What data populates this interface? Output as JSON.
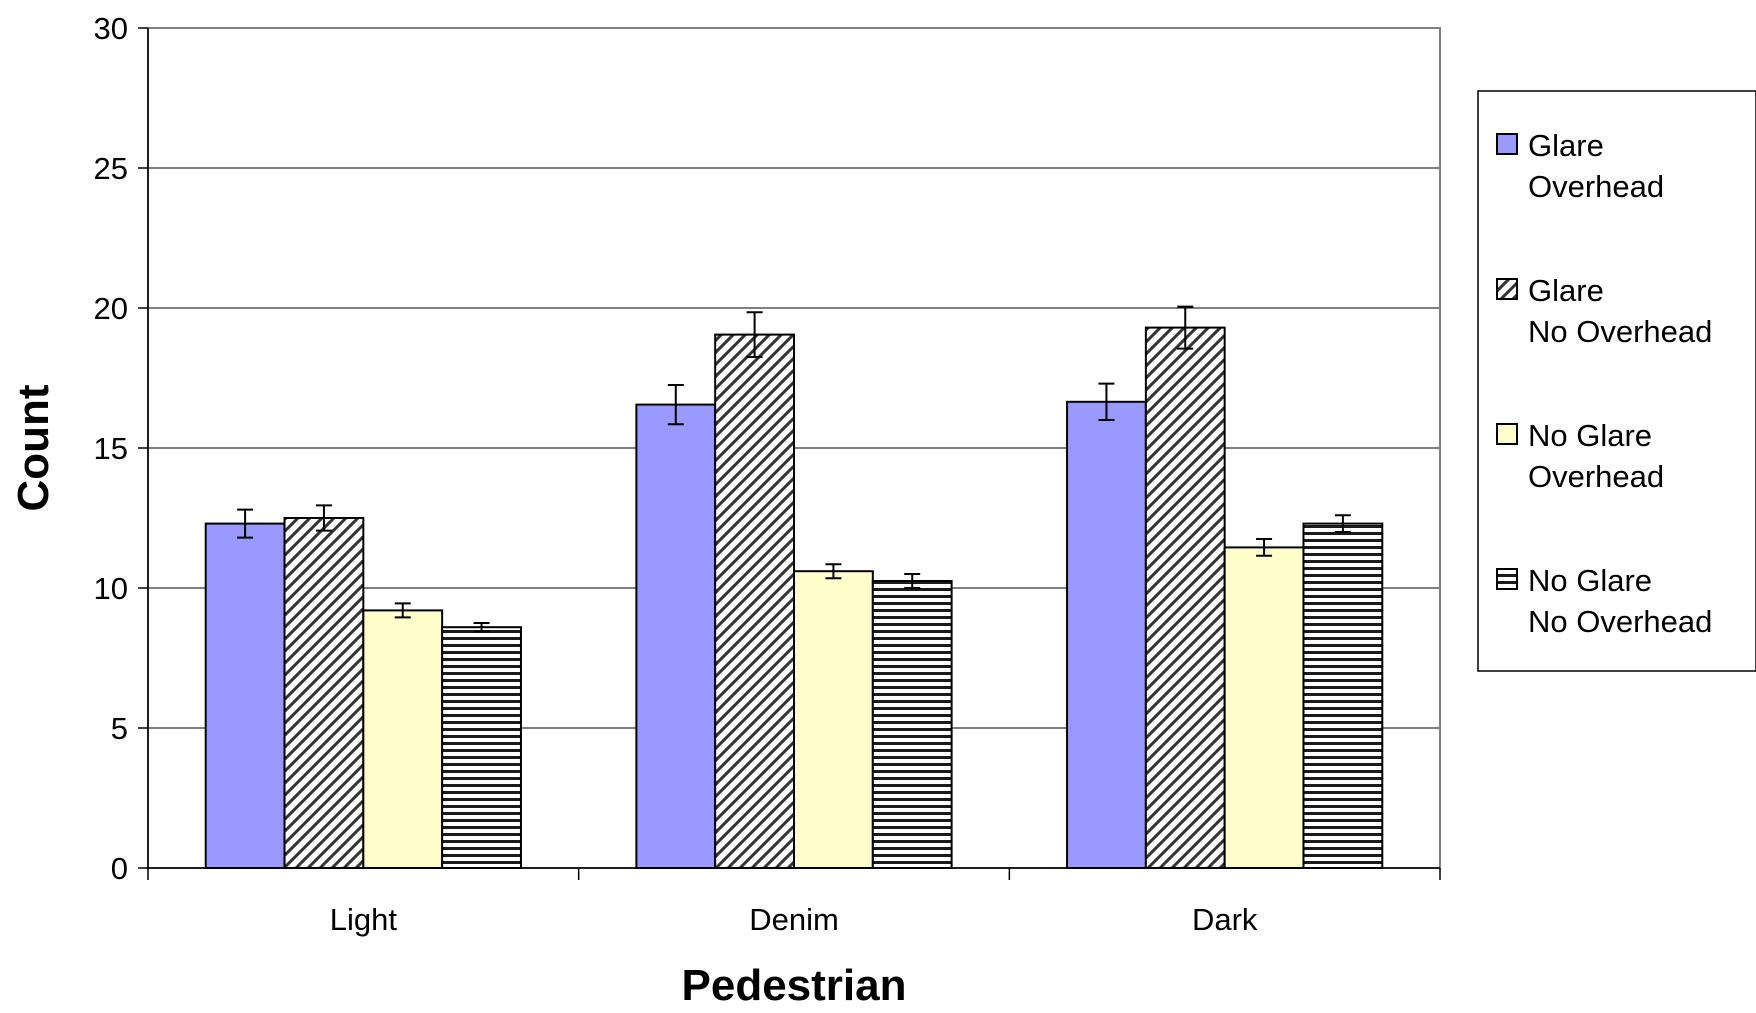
{
  "chart_data": {
    "type": "bar",
    "title": "",
    "xlabel": "Pedestrian",
    "ylabel": "Count",
    "ylim": [
      0,
      30
    ],
    "yticks": [
      0,
      5,
      10,
      15,
      20,
      25,
      30
    ],
    "grid": true,
    "legend_position": "right",
    "categories": [
      "Light",
      "Denim",
      "Dark"
    ],
    "series": [
      {
        "name": "Glare Overhead",
        "name_lines": [
          "Glare",
          "Overhead"
        ],
        "pattern": "solid",
        "color": "#9999ff",
        "values": [
          12.3,
          16.55,
          16.65
        ],
        "errors": [
          0.5,
          0.7,
          0.65
        ]
      },
      {
        "name": "Glare No Overhead",
        "name_lines": [
          "Glare",
          "No Overhead"
        ],
        "pattern": "diagonal-hatch",
        "color": "#ffffff",
        "values": [
          12.5,
          19.05,
          19.3
        ],
        "errors": [
          0.45,
          0.8,
          0.75
        ]
      },
      {
        "name": "No Glare Overhead",
        "name_lines": [
          "No Glare",
          "Overhead"
        ],
        "pattern": "solid",
        "color": "#ffffcc",
        "values": [
          9.2,
          10.6,
          11.45
        ],
        "errors": [
          0.25,
          0.25,
          0.3
        ]
      },
      {
        "name": "No Glare No Overhead",
        "name_lines": [
          "No Glare",
          "No Overhead"
        ],
        "pattern": "horizontal-hatch",
        "color": "#ffffff",
        "values": [
          8.6,
          10.25,
          12.3
        ],
        "errors": [
          0.15,
          0.25,
          0.3
        ]
      }
    ]
  }
}
